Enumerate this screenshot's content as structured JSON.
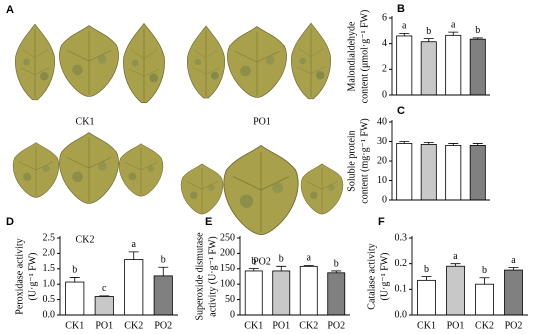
{
  "panel_A": {
    "label": "A",
    "images": [
      "CK1",
      "PO1",
      "CK2",
      "PO2"
    ]
  },
  "chart_data": [
    {
      "type": "bar",
      "panel": "B",
      "ylabel": [
        "Malondialdehyde",
        "content (μmol·g⁻¹ FW)"
      ],
      "categories": [
        null,
        null,
        null,
        null
      ],
      "values": [
        4.6,
        4.15,
        4.65,
        4.35
      ],
      "errors": [
        0.2,
        0.25,
        0.25,
        0.1
      ],
      "annotations": [
        "a",
        "b",
        "a",
        "b"
      ],
      "colors": [
        "#ffffff",
        "#c8c8c8",
        "#ffffff",
        "#808080"
      ],
      "ylim": [
        0,
        6
      ],
      "yticks": [
        0,
        2,
        4,
        6
      ]
    },
    {
      "type": "bar",
      "panel": "C",
      "ylabel": [
        "Soluble protein",
        "content (mg·g⁻¹ FW)"
      ],
      "categories": [
        null,
        null,
        null,
        null
      ],
      "values": [
        29,
        28.5,
        28,
        28
      ],
      "errors": [
        1,
        1,
        1,
        1
      ],
      "colors": [
        "#ffffff",
        "#c8c8c8",
        "#ffffff",
        "#808080"
      ],
      "ylim": [
        0,
        40
      ],
      "yticks": [
        0,
        10,
        20,
        30,
        40
      ]
    },
    {
      "type": "bar",
      "panel": "D",
      "ylabel": [
        "Peroxidase activity",
        "(U·g⁻¹ FW)"
      ],
      "categories": [
        "CK1",
        "PO1",
        "CK2",
        "PO2"
      ],
      "values": [
        1.07,
        0.6,
        1.8,
        1.27
      ],
      "errors": [
        0.15,
        0.02,
        0.25,
        0.28
      ],
      "annotations": [
        "b",
        "c",
        "a",
        "b"
      ],
      "colors": [
        "#ffffff",
        "#c8c8c8",
        "#ffffff",
        "#808080"
      ],
      "ylim": [
        0,
        2.5
      ],
      "yticks": [
        {
          "value": 0,
          "label": "0.0"
        },
        0.5,
        {
          "value": 1,
          "label": "1.0"
        },
        1.5,
        {
          "value": 2,
          "label": "2.0"
        },
        2.5
      ]
    },
    {
      "type": "bar",
      "panel": "E",
      "ylabel": [
        "Superoxide dismutase",
        "activity (U·g⁻¹ FW)"
      ],
      "categories": [
        "CK1",
        "PO1",
        "CK2",
        "PO2"
      ],
      "values": [
        143,
        143,
        158,
        137
      ],
      "errors": [
        8,
        15,
        3,
        6
      ],
      "annotations": [
        "b",
        "b",
        "a",
        "b"
      ],
      "colors": [
        "#ffffff",
        "#c8c8c8",
        "#ffffff",
        "#808080"
      ],
      "ylim": [
        0,
        250
      ],
      "yticks": [
        0,
        50,
        100,
        150,
        200,
        250
      ]
    },
    {
      "type": "bar",
      "panel": "F",
      "ylabel": [
        "Catalase activity",
        "(U·g⁻¹ FW)"
      ],
      "categories": [
        "CK1",
        "PO1",
        "CK2",
        "PO2"
      ],
      "values": [
        0.135,
        0.19,
        0.12,
        0.175
      ],
      "errors": [
        0.015,
        0.01,
        0.025,
        0.01
      ],
      "annotations": [
        "b",
        "a",
        "b",
        "a"
      ],
      "colors": [
        "#ffffff",
        "#c8c8c8",
        "#ffffff",
        "#808080"
      ],
      "ylim": [
        0,
        0.3
      ],
      "yticks": [
        {
          "value": 0,
          "label": "0.0"
        },
        0.1,
        0.2,
        0.3
      ]
    }
  ]
}
